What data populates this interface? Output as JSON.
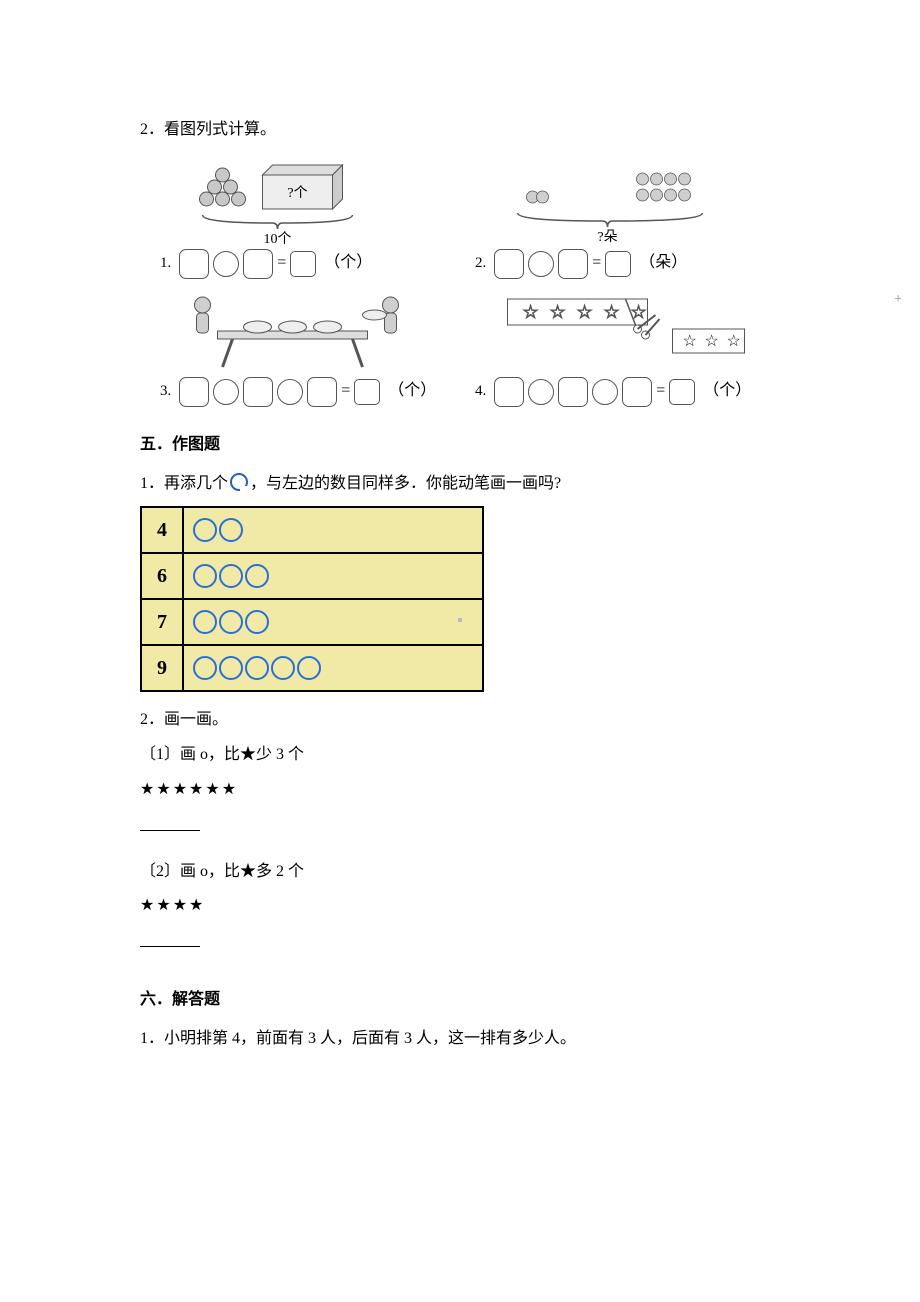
{
  "q2": {
    "label": "2．看图列式计算。"
  },
  "figure": {
    "problems": [
      {
        "num": "1.",
        "unit": "（个）",
        "pic": {
          "total_label": "10个",
          "unknown_label": "?个",
          "peach_count": 6,
          "peach_color": "#c8c8c8",
          "box_color": "#dddddd"
        }
      },
      {
        "num": "2.",
        "unit": "（朵）",
        "pic": {
          "unknown_label": "?朵",
          "left_flowers": 2,
          "right_flowers": 8,
          "flower_color": "#bfbfbf"
        }
      },
      {
        "num": "3.",
        "unit": "（个）",
        "pic": {
          "plates_on_table": 3,
          "plates_carried": 1,
          "table_color": "#cccccc",
          "person_color": "#bdbdbd"
        }
      },
      {
        "num": "4.",
        "unit": "（个）",
        "pic": {
          "stars_in_strip": 5,
          "stars_cut": 3,
          "star_color": "#ffffff",
          "outline": "#555555"
        }
      }
    ],
    "trailing_plus": "+"
  },
  "section5": {
    "title": "五．作图题",
    "q1": {
      "prefix": "1．再添几个",
      "suffix": "，与左边的数目同样多．你能动笔画一画吗?"
    },
    "table": {
      "rows": [
        {
          "n": "4",
          "circles": 2
        },
        {
          "n": "6",
          "circles": 3
        },
        {
          "n": "7",
          "circles": 3
        },
        {
          "n": "9",
          "circles": 5
        }
      ],
      "cell_bg": "#f1eaa7",
      "circle_border": "#2a6fd6",
      "grid_dot_row": 2
    },
    "q2": {
      "label": "2．画一画。",
      "part1_label": "〔1〕画 o，比★少 3 个",
      "part1_stars": "★★★★★★",
      "part2_label": "〔2〕画 o，比★多 2 个",
      "part2_stars": "★★★★"
    }
  },
  "section6": {
    "title": "六．解答题",
    "q1": "1．小明排第 4，前面有 3 人，后面有 3 人，这一排有多少人。"
  }
}
